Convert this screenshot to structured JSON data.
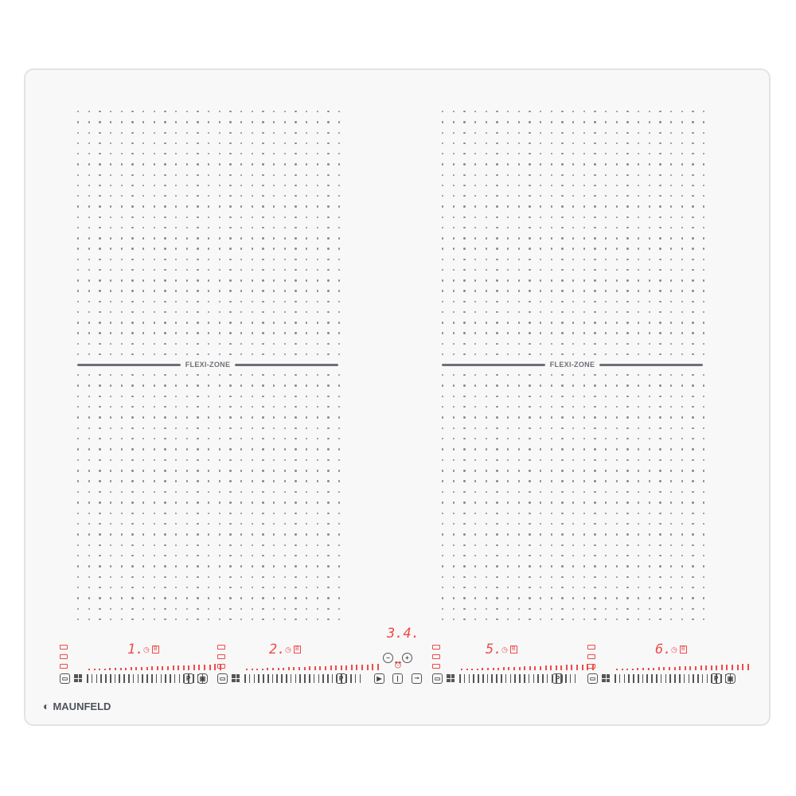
{
  "brand": "MAUNFELD",
  "zone_label": "FLEXI-ZONE",
  "colors": {
    "display": "#f04a4a",
    "markings": "#6d7076",
    "glass": "#f8f8f8"
  },
  "zones": [
    {
      "display": "1.",
      "timer_icon": "clock-icon",
      "boost_label": "B"
    },
    {
      "display": "2.",
      "timer_icon": "clock-icon",
      "boost_label": "B"
    },
    {
      "display": "5.",
      "timer_icon": "clock-icon",
      "boost_label": "B"
    },
    {
      "display": "6.",
      "timer_icon": "clock-icon",
      "boost_label": "B"
    }
  ],
  "timer": {
    "display": "3.4.",
    "minus": "−",
    "plus": "+"
  },
  "pause_label": "P",
  "icons": [
    "pan-icon",
    "bridge-icon",
    "pause-icon",
    "boost-icon",
    "play-icon",
    "power-icon",
    "lock-icon",
    "alarm-icon"
  ]
}
